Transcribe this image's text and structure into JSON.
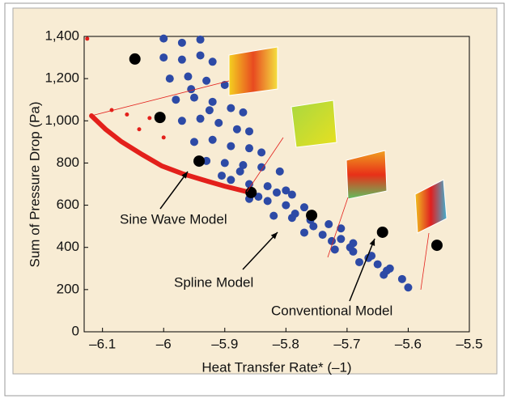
{
  "chart_data": {
    "type": "scatter",
    "xlabel": "Heat Transfer Rate* (–1)",
    "ylabel": "Sum of Pressure Drop (Pa)",
    "xlim": [
      -6.13,
      -5.5
    ],
    "ylim": [
      0,
      1400
    ],
    "xticks": [
      {
        "value": -6.1,
        "label": "–6.1"
      },
      {
        "value": -6,
        "label": "–6"
      },
      {
        "value": -5.9,
        "label": "–5.9"
      },
      {
        "value": -5.8,
        "label": "–5.8"
      },
      {
        "value": -5.7,
        "label": "–5.7"
      },
      {
        "value": -5.6,
        "label": "–5.6"
      },
      {
        "value": -5.5,
        "label": "–5.5"
      }
    ],
    "yticks": [
      0,
      200,
      400,
      600,
      800,
      {
        "value": 1000,
        "label": "1,000"
      },
      {
        "value": 1200,
        "label": "1,200"
      },
      {
        "value": 1400,
        "label": "1,400"
      }
    ],
    "series": [
      {
        "color": "#2d4aa6",
        "marker": "dot",
        "size": 5,
        "x": [
          -6.0,
          -5.97,
          -5.94,
          -6.0,
          -5.97,
          -5.94,
          -5.92,
          -5.99,
          -5.96,
          -5.93,
          -5.9,
          -5.98,
          -5.95,
          -5.92,
          -5.89,
          -5.87,
          -5.97,
          -5.94,
          -5.91,
          -5.88,
          -5.86,
          -5.95,
          -5.92,
          -5.89,
          -5.86,
          -5.84,
          -5.93,
          -5.9,
          -5.87,
          -5.84,
          -5.81,
          -5.89,
          -5.86,
          -5.83,
          -5.8,
          -5.79,
          -5.86,
          -5.83,
          -5.8,
          -5.77,
          -5.82,
          -5.79,
          -5.76,
          -5.73,
          -5.71,
          -5.77,
          -5.74,
          -5.71,
          -5.69,
          -5.72,
          -5.69,
          -5.66,
          -5.68,
          -5.65,
          -5.63,
          -5.64,
          -5.61,
          -5.6,
          -5.905,
          -5.875,
          -5.845,
          -5.815,
          -5.785,
          -5.755,
          -5.725,
          -5.695,
          -5.665,
          -5.635,
          -5.955,
          -5.925
        ],
        "y": [
          1390,
          1370,
          1385,
          1300,
          1290,
          1310,
          1280,
          1200,
          1210,
          1190,
          1170,
          1100,
          1110,
          1090,
          1060,
          1040,
          1000,
          1010,
          990,
          960,
          950,
          900,
          910,
          880,
          870,
          850,
          810,
          800,
          790,
          780,
          760,
          720,
          700,
          690,
          670,
          650,
          630,
          620,
          600,
          590,
          550,
          540,
          530,
          510,
          490,
          470,
          460,
          440,
          420,
          390,
          380,
          360,
          330,
          320,
          300,
          270,
          250,
          210,
          740,
          760,
          640,
          660,
          560,
          500,
          430,
          400,
          350,
          290,
          1150,
          1050
        ]
      },
      {
        "color": "#e3201b",
        "marker": "line",
        "size": 6,
        "x": [
          -6.118,
          -6.095,
          -6.069,
          -6.035,
          -6.003,
          -5.97,
          -5.937,
          -5.9,
          -5.864
        ],
        "y": [
          1024,
          960,
          901,
          840,
          786,
          750,
          721,
          690,
          664
        ]
      },
      {
        "color": "#e3201b",
        "marker": "dot",
        "size": 2.5,
        "x": [
          -6.125,
          -6.085,
          -6.023,
          -6.0,
          -6.04,
          -6.06
        ],
        "y": [
          1389,
          1051,
          1013,
          921,
          960,
          1030
        ]
      },
      {
        "color": "#000000",
        "marker": "dot",
        "size": 7,
        "x": [
          -6.047,
          -6.006,
          -5.942,
          -5.857,
          -5.758,
          -5.642,
          -5.553
        ],
        "y": [
          1293,
          1016,
          809,
          660,
          552,
          472,
          410
        ]
      }
    ],
    "annotations": [
      "Sine Wave Model",
      "Spline Model",
      "Conventional Model"
    ]
  }
}
